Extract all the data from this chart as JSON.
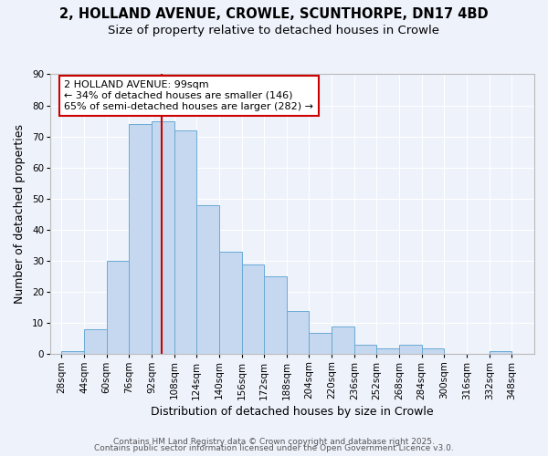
{
  "title": "2, HOLLAND AVENUE, CROWLE, SCUNTHORPE, DN17 4BD",
  "subtitle": "Size of property relative to detached houses in Crowle",
  "xlabel": "Distribution of detached houses by size in Crowle",
  "ylabel": "Number of detached properties",
  "bin_labels": [
    "28sqm",
    "44sqm",
    "60sqm",
    "76sqm",
    "92sqm",
    "108sqm",
    "124sqm",
    "140sqm",
    "156sqm",
    "172sqm",
    "188sqm",
    "204sqm",
    "220sqm",
    "236sqm",
    "252sqm",
    "268sqm",
    "284sqm",
    "300sqm",
    "316sqm",
    "332sqm",
    "348sqm"
  ],
  "bin_edges": [
    28,
    44,
    60,
    76,
    92,
    108,
    124,
    140,
    156,
    172,
    188,
    204,
    220,
    236,
    252,
    268,
    284,
    300,
    316,
    332,
    348
  ],
  "bar_values": [
    1,
    8,
    30,
    74,
    75,
    72,
    48,
    33,
    29,
    25,
    14,
    7,
    9,
    3,
    2,
    3,
    2,
    0,
    0,
    1
  ],
  "bar_color": "#c5d8f0",
  "bar_edge_color": "#6aaad4",
  "ylim": [
    0,
    90
  ],
  "yticks": [
    0,
    10,
    20,
    30,
    40,
    50,
    60,
    70,
    80,
    90
  ],
  "property_value_sqm": 99,
  "vline_color": "#cc0000",
  "annotation_text": "2 HOLLAND AVENUE: 99sqm\n← 34% of detached houses are smaller (146)\n65% of semi-detached houses are larger (282) →",
  "annotation_box_color": "#ffffff",
  "annotation_box_edge_color": "#cc0000",
  "footer_line1": "Contains HM Land Registry data © Crown copyright and database right 2025.",
  "footer_line2": "Contains public sector information licensed under the Open Government Licence v3.0.",
  "bg_color": "#eef2fb",
  "plot_bg_color": "#eef2fb",
  "grid_color": "#ffffff",
  "title_fontsize": 10.5,
  "subtitle_fontsize": 9.5,
  "axis_label_fontsize": 9,
  "tick_fontsize": 7.5,
  "annotation_fontsize": 8,
  "footer_fontsize": 6.5
}
